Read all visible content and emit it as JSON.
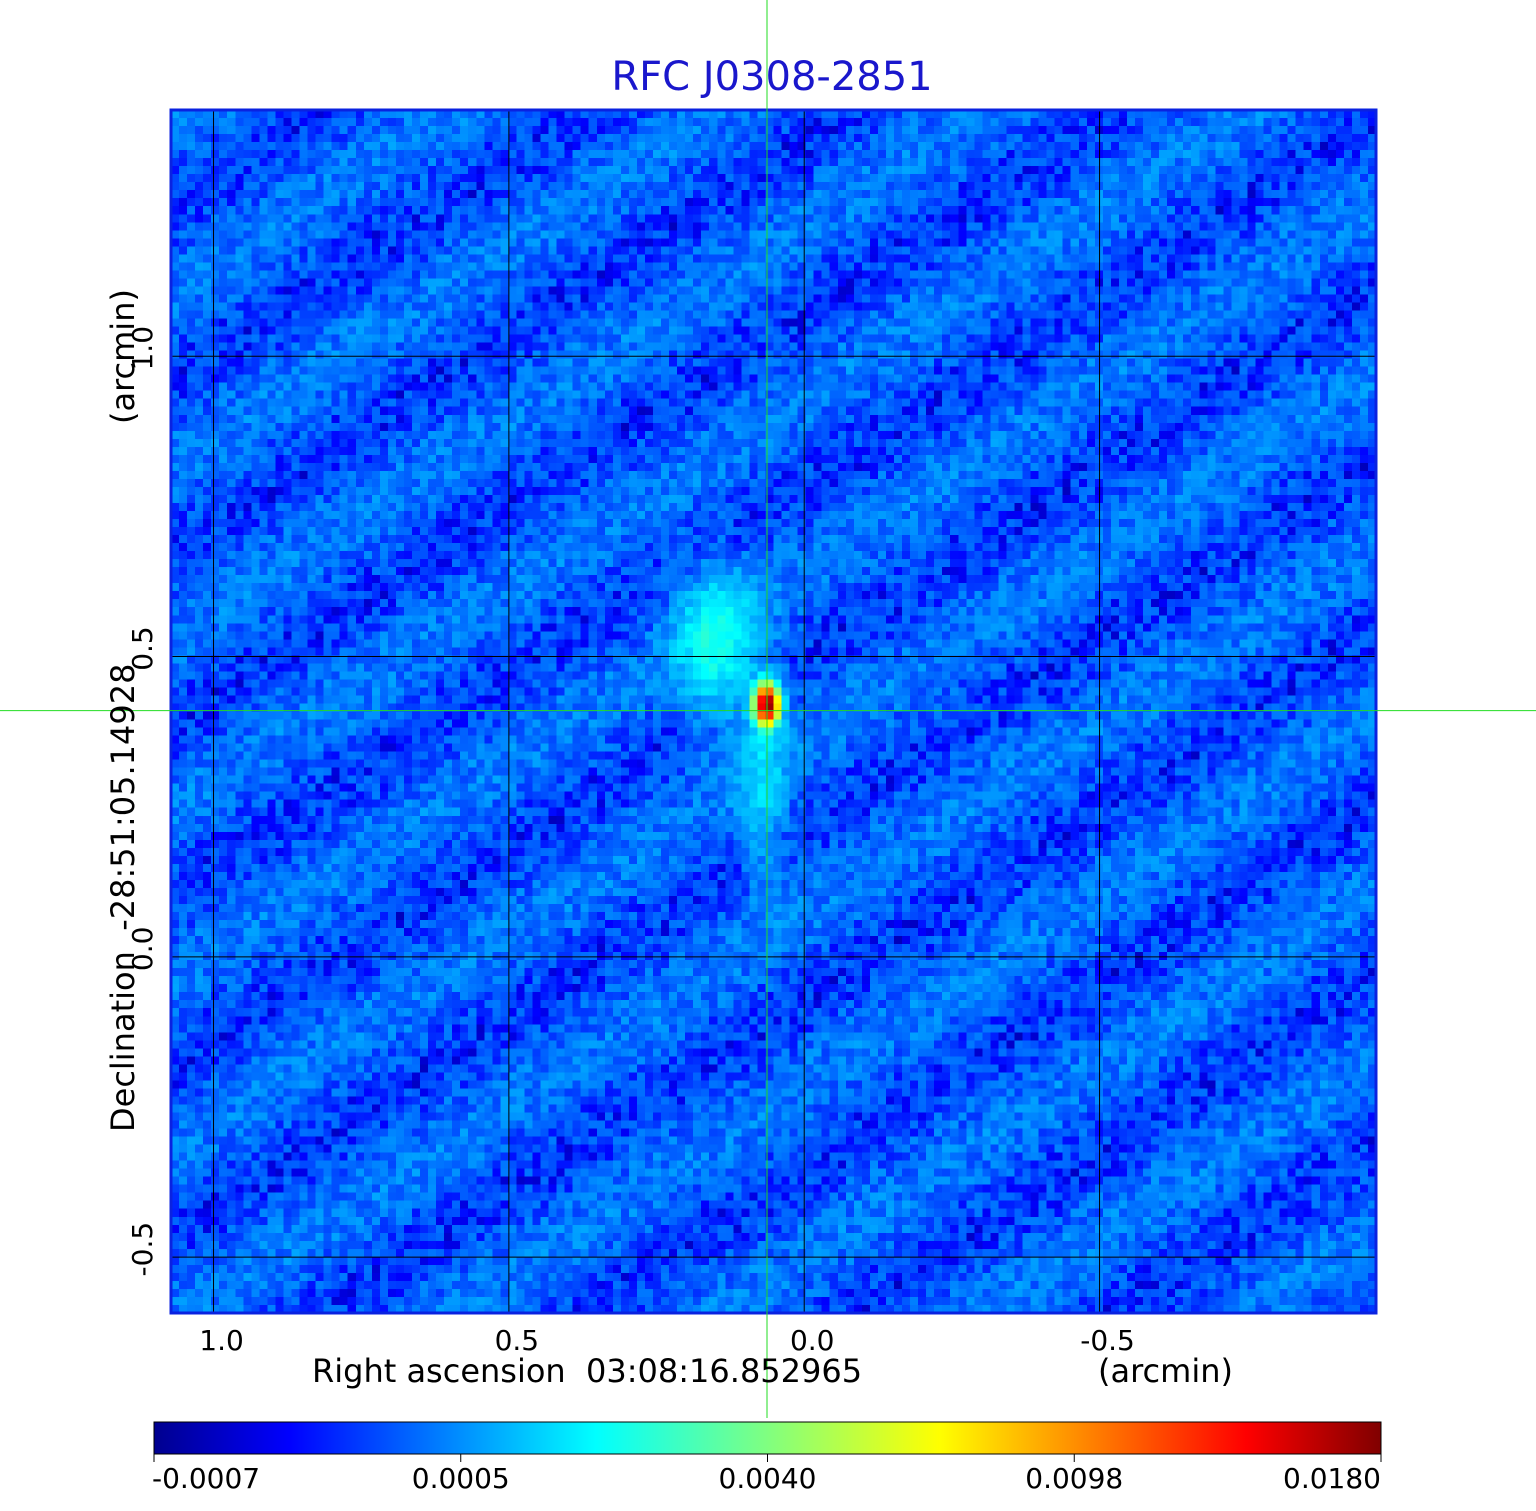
{
  "chart_data": {
    "type": "heatmap",
    "title": "RFC J0308-2851",
    "xlabel": "Right ascension  03:08:16.852965",
    "xunit": "(arcmin)",
    "ylabel": "Declination  -28:51:05.14928",
    "yunit": "(arcmin)",
    "x_ticks": [
      1.0,
      0.5,
      0.0,
      -0.5
    ],
    "x_tick_labels": [
      "1.0",
      "0.5",
      "0.0",
      "-0.5"
    ],
    "y_ticks": [
      1.0,
      0.5,
      0.0,
      -0.5
    ],
    "y_tick_labels": [
      "1.0",
      "0.5",
      "0.0",
      "-0.5"
    ],
    "xlim": [
      1.072,
      -0.968
    ],
    "ylim": [
      -0.593,
      1.41
    ],
    "crosshair": {
      "x": 0.063,
      "y": 0.41
    },
    "grid": true,
    "colormap": "jet",
    "colorbar": {
      "ticks": [
        -0.0007,
        0.0005,
        0.004,
        0.0098,
        0.018
      ],
      "tick_labels": [
        "-0.0007",
        "0.0005",
        "0.0040",
        "0.0098",
        "0.0180"
      ],
      "min": -0.0007,
      "max": 0.018
    },
    "source": {
      "peak_x": 0.063,
      "peak_y": 0.42,
      "peak_value": 0.018,
      "extended_x": 0.15,
      "extended_y": 0.52,
      "extended_value": 0.0015
    },
    "background_level": -0.0002
  },
  "colors": {
    "title": "#1a17cc",
    "crosshair": "#22dd22",
    "frame": "#0a22e0",
    "grid": "#000000"
  }
}
